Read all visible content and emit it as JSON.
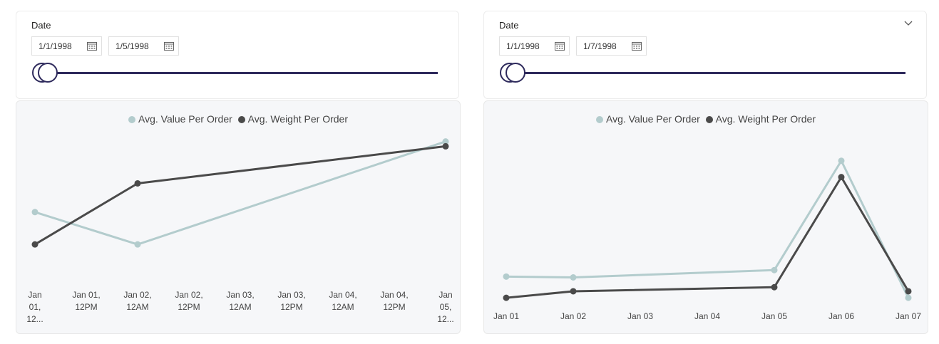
{
  "slicers": [
    {
      "title": "Date",
      "start": "1/1/1998",
      "end": "1/5/1998",
      "has_dropdown": false
    },
    {
      "title": "Date",
      "start": "1/1/1998",
      "end": "1/7/1998",
      "has_dropdown": true
    }
  ],
  "charts": [
    {
      "legend": [
        "Avg. Value Per Order",
        "Avg. Weight Per Order"
      ],
      "colors": [
        "#b3cccd",
        "#4a4a4a"
      ]
    },
    {
      "legend": [
        "Avg. Value Per Order",
        "Avg. Weight Per Order"
      ],
      "colors": [
        "#b3cccd",
        "#4a4a4a"
      ]
    }
  ],
  "chart_data": [
    {
      "type": "line",
      "categories": [
        [
          "Jan",
          "01,",
          "12..."
        ],
        [
          "Jan 01,",
          "12PM"
        ],
        [
          "Jan 02,",
          "12AM"
        ],
        [
          "Jan 02,",
          "12PM"
        ],
        [
          "Jan 03,",
          "12AM"
        ],
        [
          "Jan 03,",
          "12PM"
        ],
        [
          "Jan 04,",
          "12AM"
        ],
        [
          "Jan 04,",
          "12PM"
        ],
        [
          "Jan",
          "05,",
          "12..."
        ]
      ],
      "series": [
        {
          "name": "Avg. Value Per Order",
          "points": [
            [
              0,
              0.4
            ],
            [
              2,
              0.13
            ],
            [
              8,
              0.99
            ]
          ]
        },
        {
          "name": "Avg. Weight Per Order",
          "points": [
            [
              0,
              0.13
            ],
            [
              2,
              0.64
            ],
            [
              8,
              0.95
            ]
          ]
        }
      ]
    },
    {
      "type": "line",
      "categories": [
        "Jan 01",
        "Jan 02",
        "Jan 03",
        "Jan 04",
        "Jan 05",
        "Jan 06",
        "Jan 07"
      ],
      "series": [
        {
          "name": "Avg. Value Per Order",
          "points": [
            [
              0,
              0.16
            ],
            [
              1,
              0.155
            ],
            [
              4,
              0.2
            ],
            [
              5,
              0.87
            ],
            [
              6,
              0.03
            ]
          ]
        },
        {
          "name": "Avg. Weight Per Order",
          "points": [
            [
              0,
              0.03
            ],
            [
              1,
              0.07
            ],
            [
              4,
              0.095
            ],
            [
              5,
              0.77
            ],
            [
              6,
              0.07
            ]
          ]
        }
      ]
    }
  ]
}
